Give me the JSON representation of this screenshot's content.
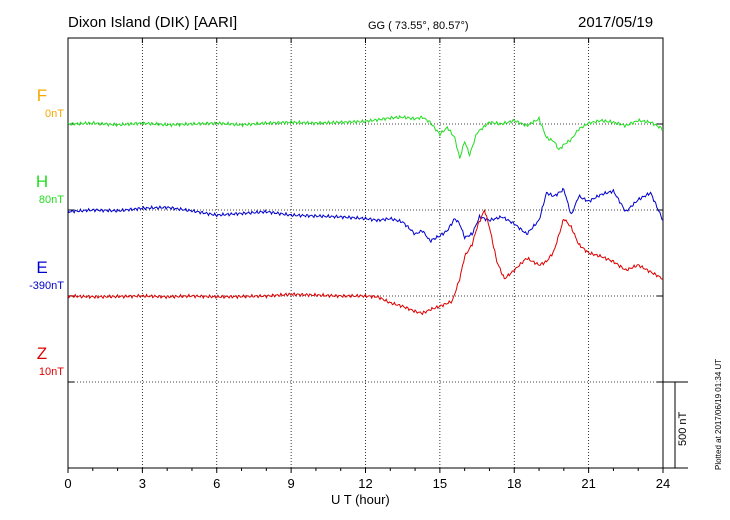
{
  "header": {
    "station": "Dixon Island (DIK)  [AARI]",
    "coords": "GG ( 73.55°,  80.57°)",
    "date": "2017/05/19"
  },
  "channels": [
    {
      "key": "F",
      "label": "F",
      "baseline": "0nT",
      "color": "#f5a800"
    },
    {
      "key": "H",
      "label": "H",
      "baseline": "80nT",
      "color": "#22dd22"
    },
    {
      "key": "E",
      "label": "E",
      "baseline": "-390nT",
      "color": "#0000cc"
    },
    {
      "key": "Z",
      "label": "Z",
      "baseline": "10nT",
      "color": "#dd0000"
    }
  ],
  "scale_bar": {
    "label": "500 nT"
  },
  "plotted_note": "Plotted at 2017/06/19 01:34 UT",
  "chart_data": {
    "type": "line",
    "xlabel": "U T (hour)",
    "xlim": [
      0,
      24
    ],
    "xticks": [
      0,
      3,
      6,
      9,
      12,
      15,
      18,
      21,
      24
    ],
    "grid": true,
    "series": [
      {
        "name": "H",
        "color": "#22dd22",
        "offset_band": 1,
        "x": [
          0,
          1,
          2,
          3,
          4,
          5,
          6,
          7,
          8,
          9,
          10,
          11,
          12,
          13,
          13.5,
          14,
          14.3,
          14.6,
          15,
          15.3,
          15.6,
          15.8,
          16,
          16.2,
          16.5,
          17,
          17.5,
          18,
          18.5,
          19,
          19.3,
          19.6,
          19.8,
          20,
          20.3,
          20.6,
          21,
          21.5,
          22,
          22.5,
          23,
          23.5,
          24
        ],
        "y": [
          0,
          5,
          -5,
          5,
          -5,
          0,
          5,
          -5,
          5,
          10,
          5,
          10,
          15,
          35,
          40,
          30,
          40,
          10,
          -60,
          -20,
          -80,
          -200,
          -100,
          -180,
          -50,
          10,
          0,
          20,
          -10,
          30,
          -80,
          -100,
          -150,
          -120,
          -90,
          -30,
          5,
          20,
          10,
          -10,
          20,
          10,
          -30
        ]
      },
      {
        "name": "E",
        "color": "#0000cc",
        "offset_band": 2,
        "x": [
          0,
          1,
          2,
          3,
          4,
          5,
          6,
          7,
          8,
          9,
          10,
          11,
          12,
          12.5,
          13,
          13.5,
          14,
          14.3,
          14.6,
          15,
          15.3,
          15.6,
          15.8,
          16,
          16.3,
          16.6,
          17,
          17.5,
          18,
          18.5,
          19,
          19.3,
          19.6,
          20,
          20.3,
          20.6,
          21,
          21.5,
          22,
          22.5,
          23,
          23.5,
          24
        ],
        "y": [
          -10,
          0,
          -5,
          10,
          15,
          -5,
          -30,
          -20,
          -10,
          -30,
          -35,
          -40,
          -50,
          -60,
          -50,
          -70,
          -140,
          -120,
          -180,
          -150,
          -120,
          -50,
          -80,
          -160,
          -140,
          -40,
          -60,
          -40,
          -80,
          -140,
          -60,
          100,
          80,
          120,
          -30,
          80,
          50,
          90,
          110,
          -10,
          60,
          100,
          -60
        ]
      },
      {
        "name": "Z",
        "color": "#dd0000",
        "offset_band": 3,
        "x": [
          0,
          1,
          2,
          3,
          4,
          5,
          6,
          7,
          8,
          9,
          10,
          11,
          12,
          12.5,
          13,
          13.5,
          14,
          14.3,
          14.6,
          15,
          15.5,
          15.8,
          16,
          16.3,
          16.5,
          16.8,
          17,
          17.3,
          17.6,
          18,
          18.5,
          19,
          19.3,
          19.6,
          20,
          20.3,
          20.6,
          21,
          21.5,
          22,
          22.5,
          23,
          23.5,
          24
        ],
        "y": [
          0,
          -5,
          -3,
          0,
          -5,
          0,
          -5,
          -3,
          0,
          10,
          5,
          0,
          0,
          -5,
          -40,
          -60,
          -90,
          -100,
          -80,
          -60,
          -30,
          100,
          230,
          300,
          400,
          500,
          400,
          200,
          100,
          150,
          220,
          180,
          200,
          260,
          450,
          400,
          300,
          250,
          230,
          200,
          150,
          180,
          140,
          100
        ]
      }
    ]
  }
}
